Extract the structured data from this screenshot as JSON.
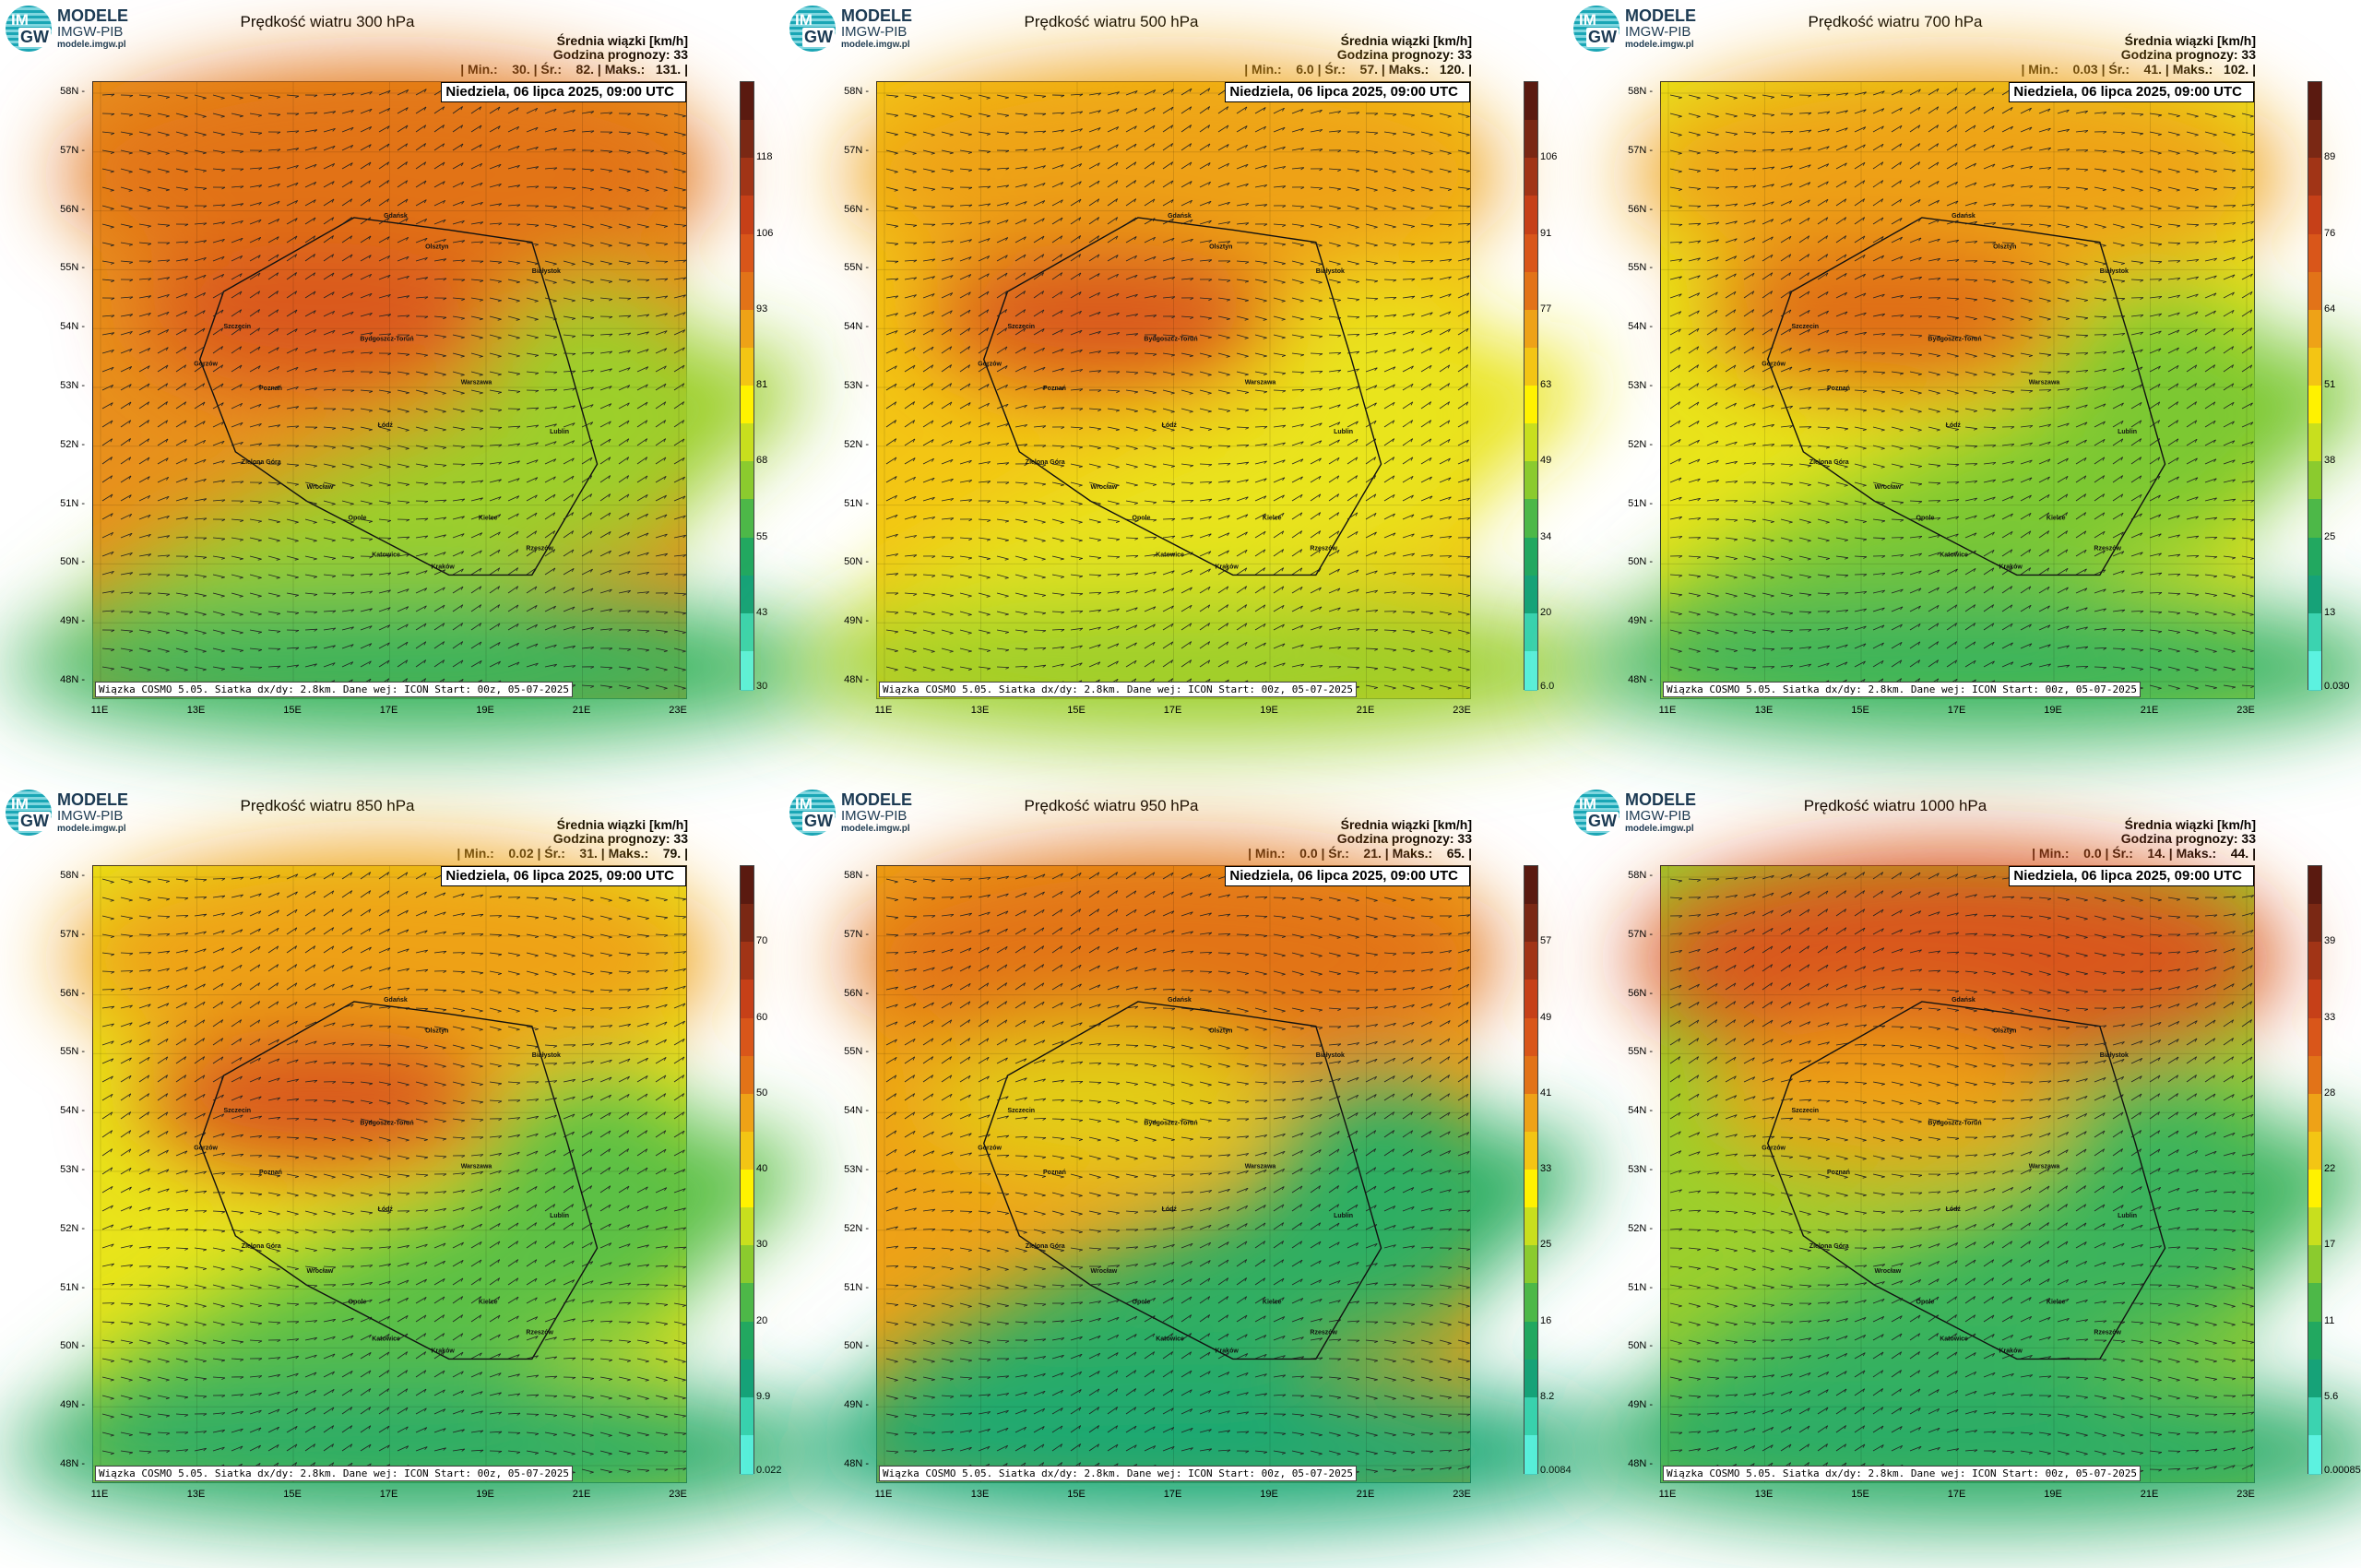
{
  "logo": {
    "line1": "MODELE",
    "line2": "IMGW-PIB",
    "line3": "modele.imgw.pl",
    "badge_top": "IM",
    "badge_bottom": "GW"
  },
  "header": {
    "line1": "Średnia wiązki [km/h]",
    "line2": "Godzina prognozy: 33"
  },
  "date_label": "Niedziela, 06 lipca 2025, 09:00 UTC",
  "credit": "Wiązka COSMO 5.05. Siatka dx/dy: 2.8km. Dane wej: ICON Start: 00z, 05-07-2025",
  "lat_labels": [
    "58N",
    "57N",
    "56N",
    "55N",
    "54N",
    "53N",
    "52N",
    "51N",
    "50N",
    "49N",
    "48N"
  ],
  "lon_labels": [
    "11E",
    "13E",
    "15E",
    "17E",
    "19E",
    "21E",
    "23E"
  ],
  "city_labels": [
    "Gdańsk",
    "Olsztyn",
    "Białystok",
    "Szczecin",
    "Bydgoszcz-Toruń",
    "Gorzów",
    "Poznań",
    "Warszawa",
    "Łódź",
    "Lublin",
    "Zielona Góra",
    "Wrocław",
    "Opole",
    "Kielce",
    "Katowice",
    "Kraków",
    "Rzeszów"
  ],
  "panels": [
    {
      "title": "Prędkość wiatru 300 hPa",
      "stats": "| Min.:    30. | Śr.:    82. | Maks.:   131. |",
      "colorbar": [
        "118",
        "106",
        "93",
        "81",
        "68",
        "55",
        "43",
        "30"
      ],
      "colors": {
        "base": "#e8901c",
        "n": "#e27318",
        "mid": "#d9561a",
        "s": "#9ccf2c",
        "se": "#39b35b"
      }
    },
    {
      "title": "Prędkość wiatru 500 hPa",
      "stats": "| Min.:    6.0 | Śr.:    57. | Maks.:   120. |",
      "colorbar": [
        "106",
        "91",
        "77",
        "63",
        "49",
        "34",
        "20",
        "6.0"
      ],
      "colors": {
        "base": "#f3c514",
        "n": "#eea217",
        "mid": "#d9561a",
        "s": "#e9e41a",
        "se": "#9ccf2c"
      }
    },
    {
      "title": "Prędkość wiatru 700 hPa",
      "stats": "| Min.:    0.03 | Śr.:    41. | Maks.:   102. |",
      "colorbar": [
        "89",
        "76",
        "64",
        "51",
        "38",
        "25",
        "13",
        "0.030"
      ],
      "colors": {
        "base": "#e9e41a",
        "n": "#eea217",
        "mid": "#df6a18",
        "s": "#7cc832",
        "se": "#39b35b"
      }
    },
    {
      "title": "Prędkość wiatru 850 hPa",
      "stats": "| Min.:    0.02 | Śr.:    31. | Maks.:    79. |",
      "colorbar": [
        "70",
        "60",
        "50",
        "40",
        "30",
        "20",
        "9.9",
        "0.022"
      ],
      "colors": {
        "base": "#e9e41a",
        "n": "#eea217",
        "mid": "#d9561a",
        "s": "#5cc044",
        "se": "#2aac66"
      }
    },
    {
      "title": "Prędkość wiatru 950 hPa",
      "stats": "| Min.:    0.0 | Śr.:    21. | Maks.:    65. |",
      "colorbar": [
        "57",
        "49",
        "41",
        "33",
        "25",
        "16",
        "8.2",
        "0.0084"
      ],
      "colors": {
        "base": "#eea217",
        "n": "#e27318",
        "mid": "#e2cf19",
        "s": "#2fae62",
        "se": "#1ea872"
      }
    },
    {
      "title": "Prędkość wiatru 1000 hPa",
      "stats": "| Min.:    0.0 | Śr.:    14. | Maks.:    44. |",
      "colorbar": [
        "39",
        "33",
        "28",
        "22",
        "17",
        "11",
        "5.6",
        "0.00085"
      ],
      "colors": {
        "base": "#9ccf2c",
        "n": "#d9561a",
        "mid": "#eea217",
        "s": "#3bb35c",
        "se": "#2aac66"
      }
    }
  ]
}
